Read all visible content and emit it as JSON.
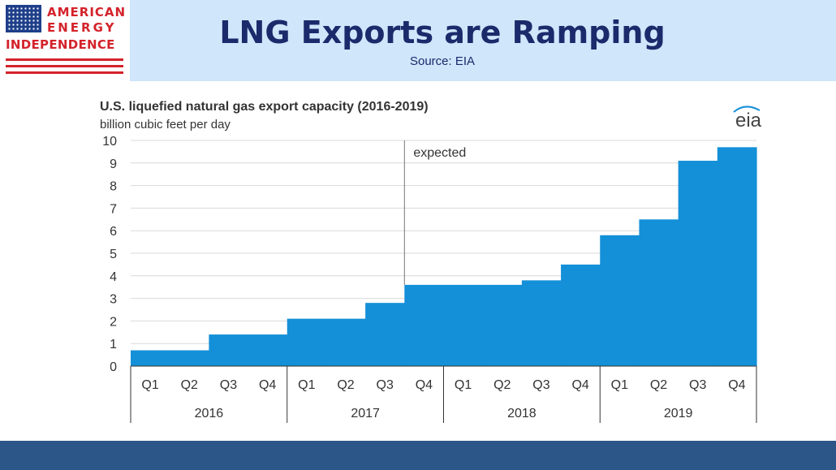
{
  "header": {
    "logo_lines": [
      "AMERICAN",
      "ENERGY",
      "INDEPENDENCE"
    ],
    "title": "LNG Exports are Ramping",
    "source": "Source: EIA"
  },
  "colors": {
    "header_band": "#cfe6fb",
    "title": "#1b2a6b",
    "logo_red": "#d4232b",
    "area_fill": "#1490d8",
    "footer_band": "#2b5687"
  },
  "chart_data": {
    "type": "area",
    "title": "U.S. liquefied natural gas export capacity (2016-2019)",
    "subtitle": "billion cubic feet per day",
    "brand": "eia",
    "quarters": [
      "Q1",
      "Q2",
      "Q3",
      "Q4",
      "Q1",
      "Q2",
      "Q3",
      "Q4",
      "Q1",
      "Q2",
      "Q3",
      "Q4",
      "Q1",
      "Q2",
      "Q3",
      "Q4"
    ],
    "years": [
      "2016",
      "2017",
      "2018",
      "2019"
    ],
    "values": [
      0.7,
      0.7,
      1.4,
      1.4,
      2.1,
      2.1,
      2.8,
      3.6,
      3.6,
      3.6,
      3.8,
      4.5,
      5.8,
      6.5,
      9.1,
      9.7
    ],
    "ylim": [
      0,
      10
    ],
    "yticks": [
      0,
      1,
      2,
      3,
      4,
      5,
      6,
      7,
      8,
      9,
      10
    ],
    "annotation": {
      "text": "expected",
      "at_quarter_index": 7
    },
    "step": true
  }
}
